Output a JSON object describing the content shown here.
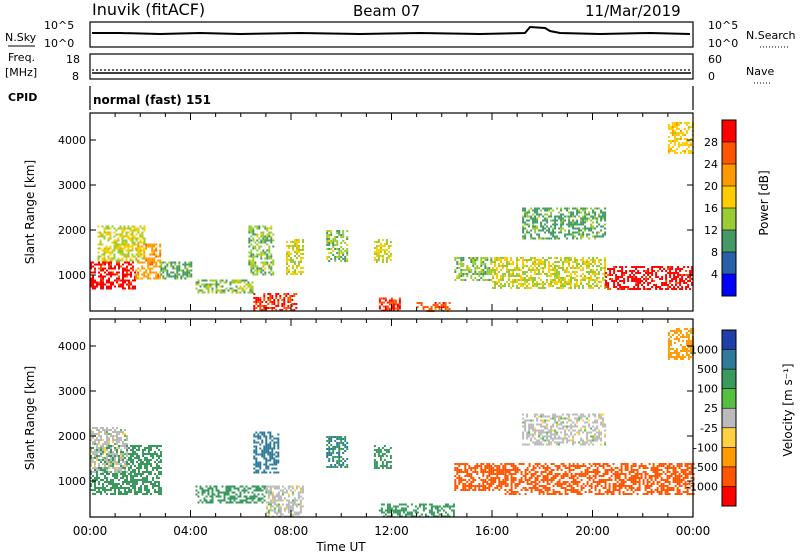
{
  "header": {
    "station": "Inuvik (fitACF)",
    "beam": "Beam 07",
    "date": "11/Mar/2019"
  },
  "panels": {
    "nsky": {
      "left_label": "N.Sky",
      "left_ticks": [
        "10^5",
        "10^0"
      ],
      "right_label": "N.Search",
      "right_ticks": [
        "10^5",
        "10^0"
      ]
    },
    "freq": {
      "left_label_1": "Freq.",
      "left_label_2": "[MHz]",
      "left_ticks": [
        "18",
        "8"
      ],
      "right_label": "Nave",
      "right_ticks": [
        "60",
        "0"
      ]
    },
    "cpid": {
      "label": "CPID",
      "value": "normal (fast) 151"
    }
  },
  "chart_data": [
    {
      "type": "heatmap",
      "name_printed": "Power",
      "ylabel": "Slant Range [km]",
      "xlabel": "Time UT",
      "yticks": [
        1000,
        2000,
        3000,
        4000
      ],
      "ylim": [
        200,
        4600
      ],
      "xlim": [
        0,
        24
      ],
      "xticks": [
        "00:00",
        "04:00",
        "08:00",
        "12:00",
        "16:00",
        "20:00",
        "00:00"
      ],
      "colorbar_label": "Power [dB]",
      "colorbar_ticks": [
        "28",
        "24",
        "20",
        "16",
        "12",
        "8",
        "4"
      ],
      "colorbar_colors": [
        "#ff0000",
        "#ff5500",
        "#ff9900",
        "#ffcc00",
        "#99cc33",
        "#449966",
        "#2a5faa",
        "#0000ff"
      ],
      "regions": [
        {
          "t0": 0.0,
          "t1": 1.8,
          "r0": 700,
          "r1": 1300,
          "value": 28
        },
        {
          "t0": 1.8,
          "t1": 2.8,
          "r0": 900,
          "r1": 1700,
          "value": 20
        },
        {
          "t0": 0.3,
          "t1": 2.2,
          "r0": 1300,
          "r1": 2100,
          "value": 14
        },
        {
          "t0": 2.8,
          "t1": 4.0,
          "r0": 900,
          "r1": 1300,
          "value": 10
        },
        {
          "t0": 4.2,
          "t1": 6.5,
          "r0": 600,
          "r1": 900,
          "value": 12
        },
        {
          "t0": 6.5,
          "t1": 8.2,
          "r0": 200,
          "r1": 600,
          "value": 26
        },
        {
          "t0": 6.3,
          "t1": 7.3,
          "r0": 1000,
          "r1": 2100,
          "value": 12
        },
        {
          "t0": 7.8,
          "t1": 8.5,
          "r0": 1000,
          "r1": 1800,
          "value": 14
        },
        {
          "t0": 9.4,
          "t1": 10.2,
          "r0": 1300,
          "r1": 2000,
          "value": 12
        },
        {
          "t0": 11.3,
          "t1": 12.0,
          "r0": 1300,
          "r1": 1800,
          "value": 14
        },
        {
          "t0": 11.5,
          "t1": 12.3,
          "r0": 200,
          "r1": 500,
          "value": 26
        },
        {
          "t0": 13.0,
          "t1": 14.3,
          "r0": 200,
          "r1": 400,
          "value": 24
        },
        {
          "t0": 14.5,
          "t1": 16.0,
          "r0": 900,
          "r1": 1400,
          "value": 12
        },
        {
          "t0": 16.0,
          "t1": 20.5,
          "r0": 700,
          "r1": 1400,
          "value": 14
        },
        {
          "t0": 17.2,
          "t1": 20.5,
          "r0": 1800,
          "r1": 2500,
          "value": 10
        },
        {
          "t0": 20.5,
          "t1": 24.0,
          "r0": 700,
          "r1": 1200,
          "value": 28
        },
        {
          "t0": 23.0,
          "t1": 24.0,
          "r0": 3700,
          "r1": 4400,
          "value": 16
        }
      ]
    },
    {
      "type": "heatmap",
      "name_printed": "Velocity",
      "ylabel": "Slant Range [km]",
      "xlabel": "Time UT",
      "yticks": [
        1000,
        2000,
        3000,
        4000
      ],
      "ylim": [
        200,
        4600
      ],
      "xlim": [
        0,
        24
      ],
      "xticks": [
        "00:00",
        "04:00",
        "08:00",
        "12:00",
        "16:00",
        "20:00",
        "00:00"
      ],
      "colorbar_label": "Velocity [m s⁻¹]",
      "colorbar_ticks": [
        "1000",
        "500",
        "100",
        "25",
        "-25",
        "-100",
        "-500",
        "-1000"
      ],
      "colorbar_colors": [
        "#1f3fa8",
        "#2f7a9a",
        "#3a9a5e",
        "#55c040",
        "#bbbbbb",
        "#ffd040",
        "#ff9a00",
        "#ff5500",
        "#ff0000"
      ],
      "regions": [
        {
          "t0": 0.0,
          "t1": 2.8,
          "r0": 700,
          "r1": 1800,
          "value": 100
        },
        {
          "t0": 0.0,
          "t1": 1.5,
          "r0": 1200,
          "r1": 2200,
          "value": 0
        },
        {
          "t0": 4.2,
          "t1": 7.0,
          "r0": 500,
          "r1": 900,
          "value": 100
        },
        {
          "t0": 6.5,
          "t1": 7.5,
          "r0": 1200,
          "r1": 2100,
          "value": 400
        },
        {
          "t0": 7.0,
          "t1": 8.5,
          "r0": 200,
          "r1": 900,
          "value": 0
        },
        {
          "t0": 9.4,
          "t1": 10.2,
          "r0": 1300,
          "r1": 2000,
          "value": 300
        },
        {
          "t0": 11.3,
          "t1": 12.0,
          "r0": 1300,
          "r1": 1800,
          "value": 200
        },
        {
          "t0": 11.5,
          "t1": 14.5,
          "r0": 200,
          "r1": 500,
          "value": 100
        },
        {
          "t0": 14.5,
          "t1": 16.5,
          "r0": 800,
          "r1": 1400,
          "value": -500
        },
        {
          "t0": 16.5,
          "t1": 24.0,
          "r0": 700,
          "r1": 1400,
          "value": -500
        },
        {
          "t0": 17.2,
          "t1": 20.5,
          "r0": 1800,
          "r1": 2500,
          "value": 0
        },
        {
          "t0": 23.0,
          "t1": 24.0,
          "r0": 3700,
          "r1": 4400,
          "value": -100
        }
      ]
    }
  ]
}
